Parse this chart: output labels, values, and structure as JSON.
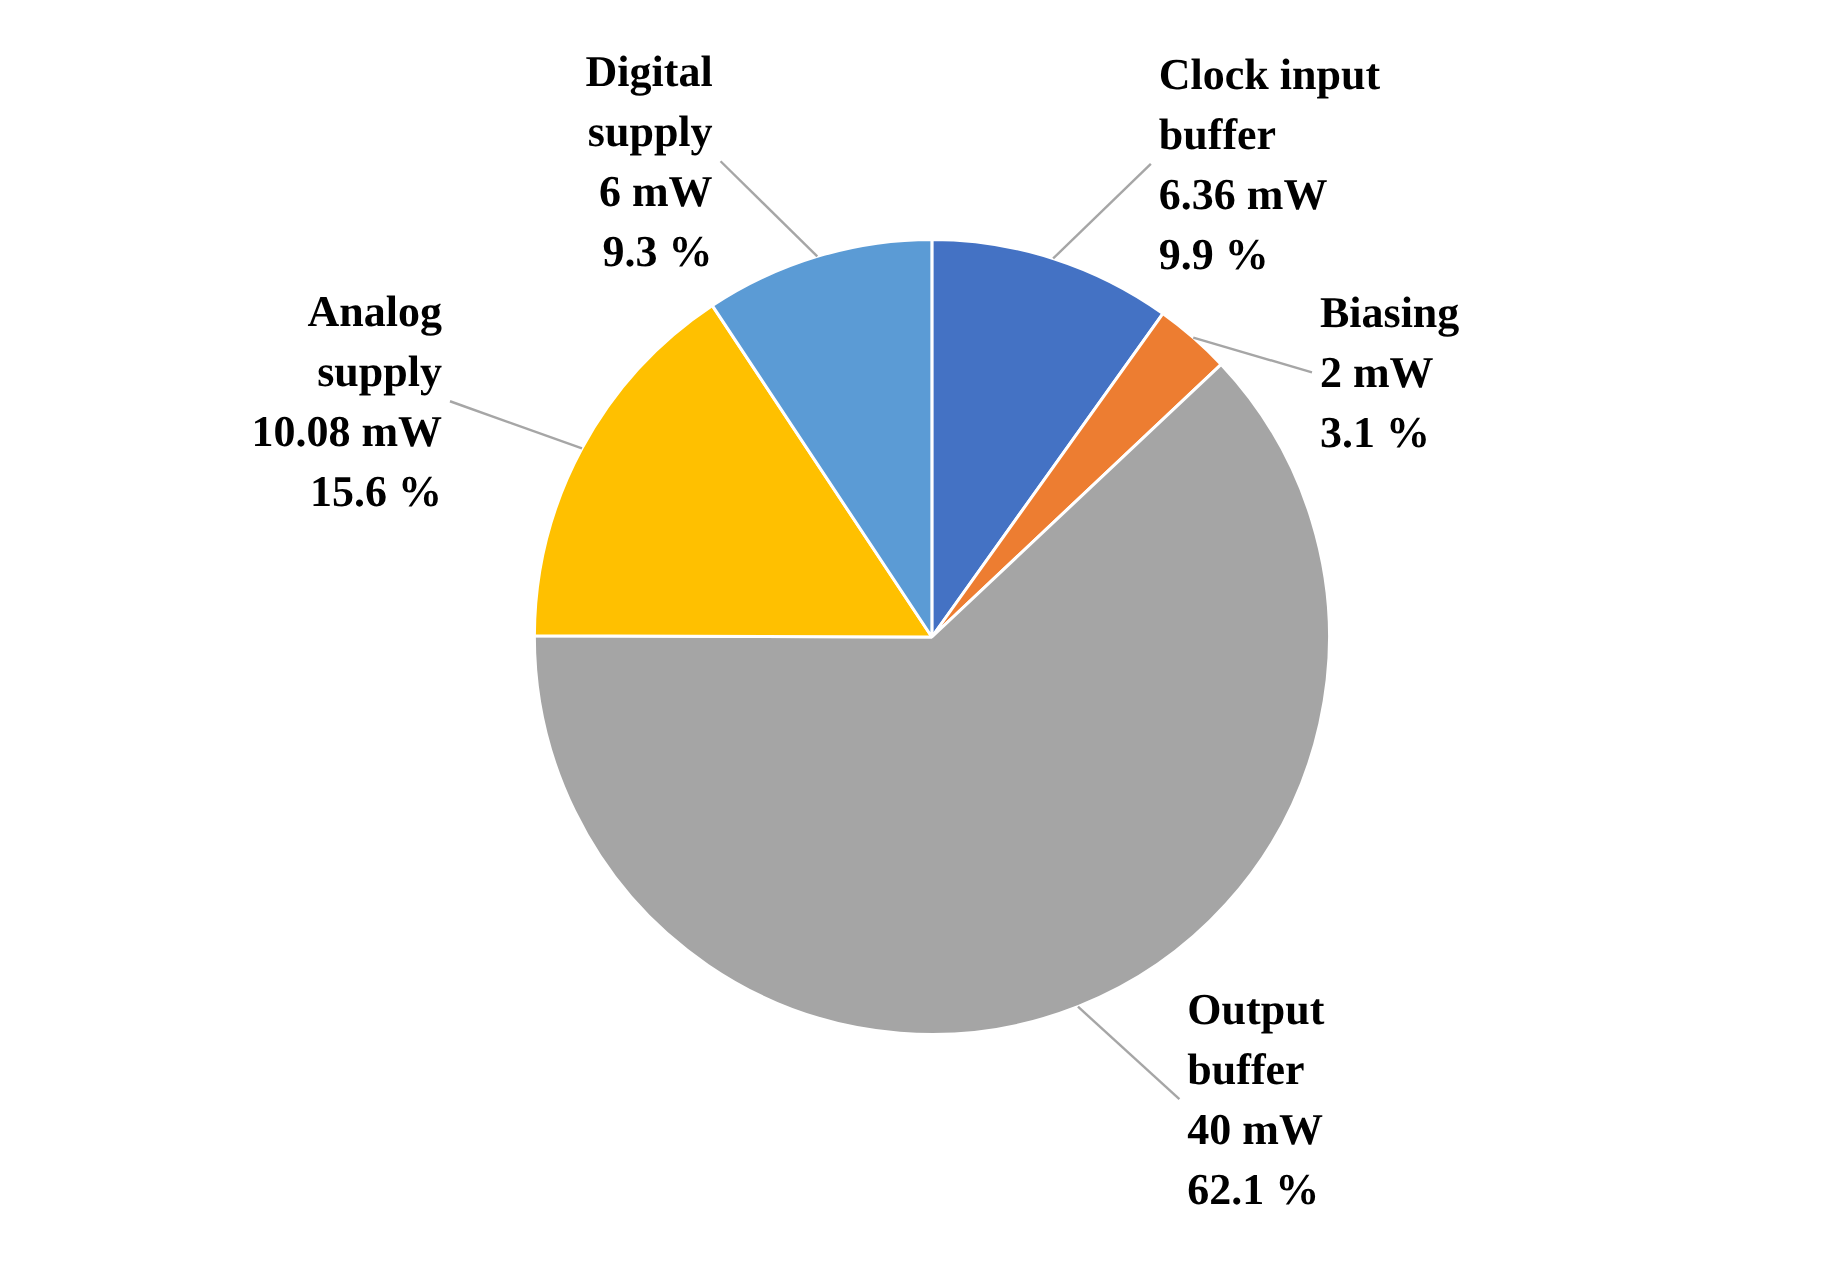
{
  "chart_data": {
    "type": "pie",
    "categories": [
      "Clock input\nbuffer",
      "Biasing",
      "Output\nbuffer",
      "Analog\nsupply",
      "Digital\nsupply"
    ],
    "values": [
      6.36,
      2,
      40,
      10.08,
      6
    ],
    "value_labels": [
      "6.36 mW\n9.9 %",
      "2 mW\n3.1 %",
      "40 mW\n62.1 %",
      "10.08 mW\n15.6 %",
      "6 mW\n9.3 %"
    ],
    "colors": [
      "#4472c4",
      "#ed7d31",
      "#a5a5a5",
      "#ffc000",
      "#5b9bd5"
    ],
    "legend": false
  }
}
